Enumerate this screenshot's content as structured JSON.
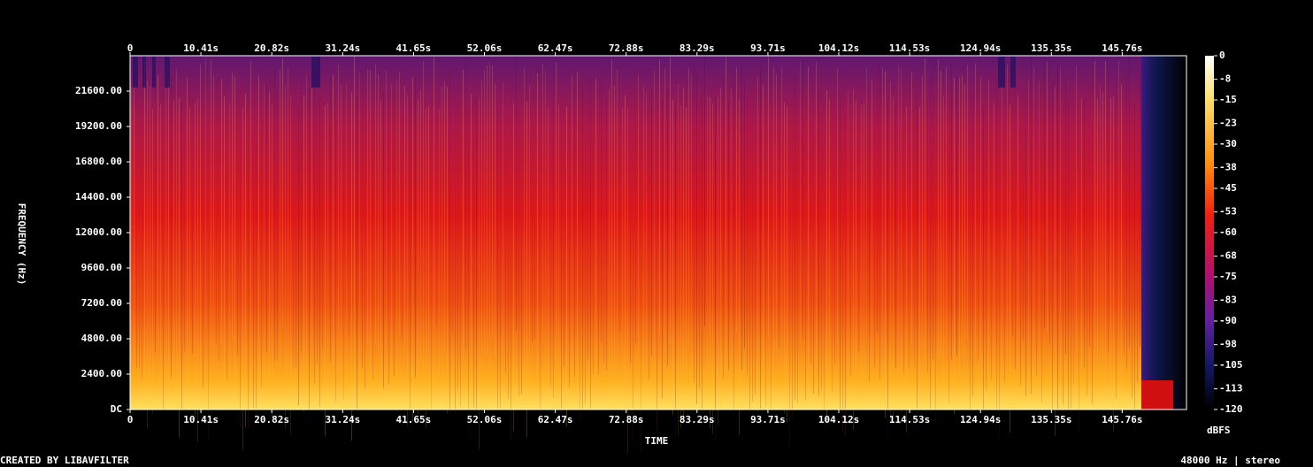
{
  "chart_data": {
    "type": "spectrogram",
    "x_label": "TIME",
    "y_label": "FREQUENCY (Hz)",
    "colorbar_label": "dBFS",
    "footer_left": "CREATED BY LIBAVFILTER",
    "footer_right": "48000 Hz | stereo",
    "xlim": [
      0,
      155.2
    ],
    "xticks": [
      0,
      {
        "value": 10.41,
        "label": "10.41s"
      },
      {
        "value": 20.82,
        "label": "20.82s"
      },
      {
        "value": 31.24,
        "label": "31.24s"
      },
      {
        "value": 41.65,
        "label": "41.65s"
      },
      {
        "value": 52.06,
        "label": "52.06s"
      },
      {
        "value": 62.47,
        "label": "62.47s"
      },
      {
        "value": 72.88,
        "label": "72.88s"
      },
      {
        "value": 83.29,
        "label": "83.29s"
      },
      {
        "value": 93.71,
        "label": "93.71s"
      },
      {
        "value": 104.12,
        "label": "104.12s"
      },
      {
        "value": 114.53,
        "label": "114.53s"
      },
      {
        "value": 124.94,
        "label": "124.94s"
      },
      {
        "value": 135.35,
        "label": "135.35s"
      },
      {
        "value": 145.76,
        "label": "145.76s"
      }
    ],
    "ylim": [
      0,
      24000
    ],
    "yticks": [
      {
        "value": 0,
        "label": "DC"
      },
      {
        "value": 2400,
        "label": "2400.00"
      },
      {
        "value": 4800,
        "label": "4800.00"
      },
      {
        "value": 7200,
        "label": "7200.00"
      },
      {
        "value": 9600,
        "label": "9600.00"
      },
      {
        "value": 12000,
        "label": "12000.00"
      },
      {
        "value": 14400,
        "label": "14400.00"
      },
      {
        "value": 16800,
        "label": "16800.00"
      },
      {
        "value": 19200,
        "label": "19200.00"
      },
      {
        "value": 21600,
        "label": "21600.00"
      }
    ],
    "clim": [
      -120,
      0
    ],
    "cticks": [
      0,
      -8,
      -15,
      -23,
      -30,
      -38,
      -45,
      -53,
      -60,
      -68,
      -75,
      -83,
      -90,
      -98,
      -105,
      -113,
      -120
    ]
  }
}
